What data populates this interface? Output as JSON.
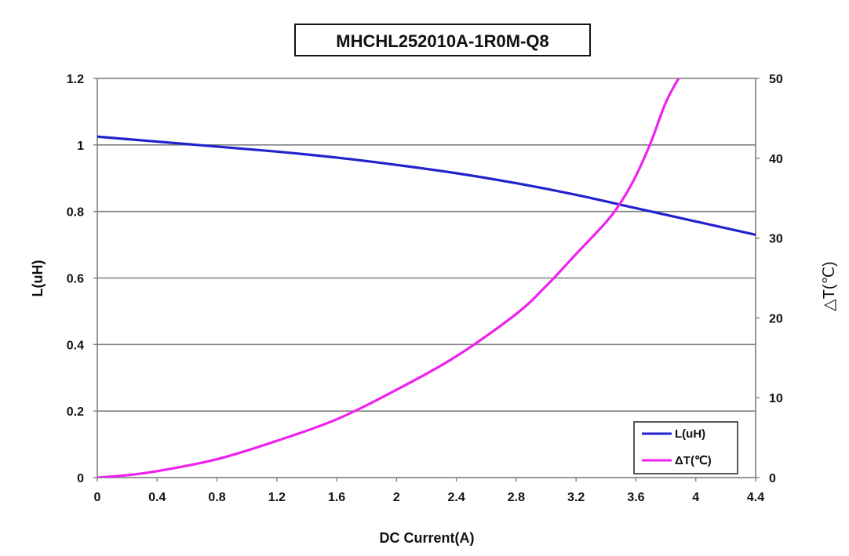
{
  "chart_data": {
    "type": "line",
    "title": "MHCHL252010A-1R0M-Q8",
    "xlabel": "DC Current(A)",
    "ylabel": "L(uH)",
    "y2label": "△T(℃)",
    "xlim": [
      0,
      4.4
    ],
    "ylim": [
      0,
      1.2
    ],
    "y2lim": [
      0,
      50
    ],
    "x_ticks": [
      "0",
      "0.4",
      "0.8",
      "1.2",
      "1.6",
      "2",
      "2.4",
      "2.8",
      "3.2",
      "3.6",
      "4",
      "4.4"
    ],
    "y_ticks": [
      "0",
      "0.2",
      "0.4",
      "0.6",
      "0.8",
      "1",
      "1.2"
    ],
    "y2_ticks": [
      "0",
      "10",
      "20",
      "30",
      "40",
      "50"
    ],
    "grid": "horizontal",
    "legend_position": "bottom-right",
    "series": [
      {
        "name": "L(uH)",
        "axis": "left",
        "color": "#2222cc",
        "x": [
          0,
          0.4,
          0.8,
          1.2,
          1.6,
          2.0,
          2.4,
          2.8,
          3.2,
          3.6,
          4.0,
          4.4
        ],
        "y": [
          1.025,
          1.01,
          0.995,
          0.98,
          0.962,
          0.94,
          0.915,
          0.885,
          0.85,
          0.81,
          0.77,
          0.73
        ]
      },
      {
        "name": "ΔT(℃)",
        "axis": "right",
        "color": "#ee22ee",
        "x": [
          0,
          0.2,
          0.4,
          0.8,
          1.2,
          1.6,
          2.0,
          2.4,
          2.8,
          3.0,
          3.2,
          3.4,
          3.5,
          3.6,
          3.7,
          3.8,
          3.9
        ],
        "y": [
          0,
          0.3,
          0.8,
          2.3,
          4.6,
          7.3,
          11.0,
          15.2,
          20.5,
          24.0,
          28.0,
          32.0,
          34.5,
          37.8,
          42.0,
          47.0,
          50.5
        ]
      }
    ]
  }
}
